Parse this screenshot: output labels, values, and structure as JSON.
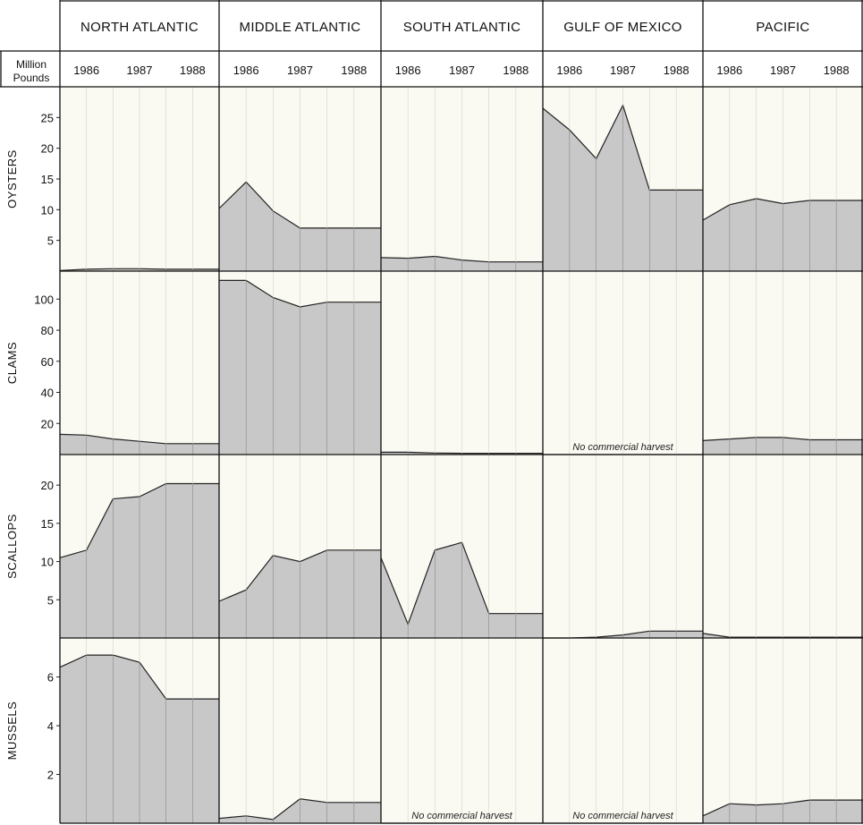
{
  "chart_data": {
    "type": "area",
    "unit_label": [
      "Million",
      "Pounds"
    ],
    "regions": [
      "NORTH ATLANTIC",
      "MIDDLE ATLANTIC",
      "SOUTH ATLANTIC",
      "GULF OF MEXICO",
      "PACIFIC"
    ],
    "years": [
      "1986",
      "1987",
      "1988"
    ],
    "x": [
      1985.5,
      1986,
      1986.5,
      1987,
      1987.5,
      1988,
      1988.5
    ],
    "fill_color": "#c8c8c8",
    "background_color": "#fbfaf2",
    "rows": [
      {
        "species": "OYSTERS",
        "ylim": [
          0,
          30
        ],
        "yticks": [
          5,
          10,
          15,
          20,
          25
        ],
        "values": [
          [
            0.1,
            0.3,
            0.4,
            0.4,
            0.3,
            0.3,
            0.3
          ],
          [
            10.2,
            14.5,
            9.8,
            7.0,
            7.0,
            7.0,
            7.0
          ],
          [
            2.2,
            2.1,
            2.4,
            1.8,
            1.5,
            1.5,
            1.5
          ],
          [
            26.5,
            23.0,
            18.3,
            27.0,
            13.2,
            13.2,
            13.2
          ],
          [
            8.3,
            10.8,
            11.8,
            11.0,
            11.5,
            11.5,
            11.5
          ]
        ],
        "notes": [
          "",
          "",
          "",
          "",
          ""
        ]
      },
      {
        "species": "CLAMS",
        "ylim": [
          0,
          118
        ],
        "yticks": [
          20,
          40,
          60,
          80,
          100
        ],
        "values": [
          [
            13,
            12.5,
            10,
            8.5,
            7,
            7,
            7
          ],
          [
            112,
            112,
            101,
            95,
            98,
            98,
            98
          ],
          [
            1.5,
            1.5,
            1.0,
            0.8,
            0.8,
            0.8,
            0.8
          ],
          [
            0,
            0,
            0,
            0,
            0,
            0,
            0
          ],
          [
            9,
            10,
            11,
            11,
            9.5,
            9.5,
            9.5
          ]
        ],
        "notes": [
          "",
          "",
          "",
          "No commercial harvest",
          ""
        ]
      },
      {
        "species": "SCALLOPS",
        "ylim": [
          0,
          24
        ],
        "yticks": [
          5,
          10,
          15,
          20
        ],
        "values": [
          [
            10.5,
            11.5,
            18.2,
            18.5,
            20.2,
            20.2,
            20.2
          ],
          [
            4.8,
            6.3,
            10.8,
            10.0,
            11.5,
            11.5,
            11.5
          ],
          [
            10.5,
            1.8,
            11.5,
            12.5,
            3.2,
            3.2,
            3.2
          ],
          [
            0,
            0,
            0.1,
            0.4,
            0.9,
            0.9,
            0.9
          ],
          [
            0.6,
            0.1,
            0.1,
            0.1,
            0.1,
            0.1,
            0.1
          ]
        ],
        "notes": [
          "",
          "",
          "",
          "",
          ""
        ]
      },
      {
        "species": "MUSSELS",
        "ylim": [
          0,
          7.6
        ],
        "yticks": [
          2,
          4,
          6
        ],
        "values": [
          [
            6.4,
            6.9,
            6.9,
            6.6,
            5.1,
            5.1,
            5.1
          ],
          [
            0.2,
            0.3,
            0.15,
            1.0,
            0.85,
            0.85,
            0.85
          ],
          [
            0,
            0,
            0,
            0,
            0,
            0,
            0
          ],
          [
            0,
            0,
            0,
            0,
            0,
            0,
            0
          ],
          [
            0.3,
            0.8,
            0.75,
            0.8,
            0.95,
            0.95,
            0.95
          ]
        ],
        "notes": [
          "",
          "",
          "No commercial harvest",
          "No commercial harvest",
          ""
        ]
      }
    ]
  }
}
